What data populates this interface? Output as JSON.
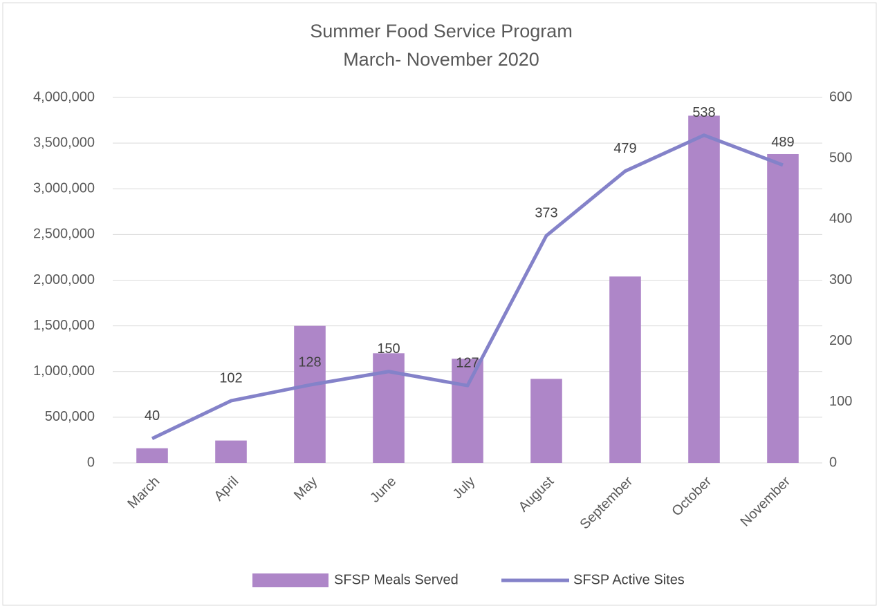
{
  "chart_data": {
    "type": "bar-line",
    "title": "Summer Food Service Program",
    "subtitle": "March- November 2020",
    "categories": [
      "March",
      "April",
      "May",
      "June",
      "July",
      "August",
      "September",
      "October",
      "November"
    ],
    "series": [
      {
        "name": "SFSP Meals Served",
        "type": "bar",
        "color": "#ae86c8",
        "values": [
          160000,
          245000,
          1500000,
          1200000,
          1140000,
          920000,
          2040000,
          3800000,
          3380000
        ]
      },
      {
        "name": "SFSP Active Sites",
        "type": "line",
        "color": "#8482c9",
        "axis": "y2",
        "values": [
          40,
          102,
          128,
          150,
          127,
          373,
          479,
          538,
          489
        ]
      }
    ],
    "ylim": [
      0,
      4000000
    ],
    "yticks": [
      0,
      {
        "value": 500000,
        "label": "500,000"
      },
      {
        "value": 1000000,
        "label": "1,000,000"
      },
      {
        "value": 1500000,
        "label": "1,500,000"
      },
      {
        "value": 2000000,
        "label": "2,000,000"
      },
      {
        "value": 2500000,
        "label": "2,500,000"
      },
      {
        "value": 3000000,
        "label": "3,000,000"
      },
      {
        "value": 3500000,
        "label": "3,500,000"
      },
      {
        "value": 4000000,
        "label": "4,000,000"
      }
    ],
    "y2lim": [
      0,
      600
    ],
    "y2ticks": [
      0,
      100,
      200,
      300,
      400,
      500,
      600
    ],
    "grid": true,
    "legend": "bottom"
  }
}
